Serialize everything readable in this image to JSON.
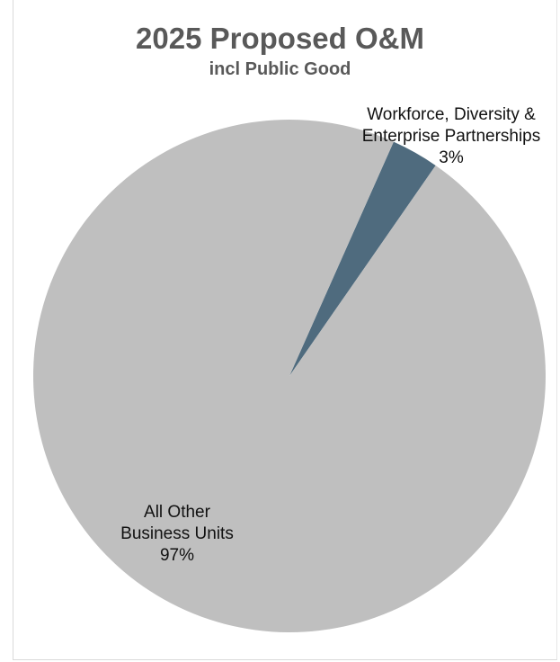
{
  "chart_data": {
    "type": "pie",
    "title": "2025 Proposed O&M",
    "subtitle": "incl Public Good",
    "slices": [
      {
        "name": "Workforce, Diversity & Enterprise Partnerships",
        "label_lines": [
          "Workforce, Diversity &",
          "Enterprise Partnerships",
          "3%"
        ],
        "value": 3,
        "color": "#4f6b7e"
      },
      {
        "name": "All Other Business Units",
        "label_lines": [
          "All Other",
          "Business Units",
          "97%"
        ],
        "value": 97,
        "color": "#bfbfbf"
      }
    ],
    "legend": "none"
  }
}
